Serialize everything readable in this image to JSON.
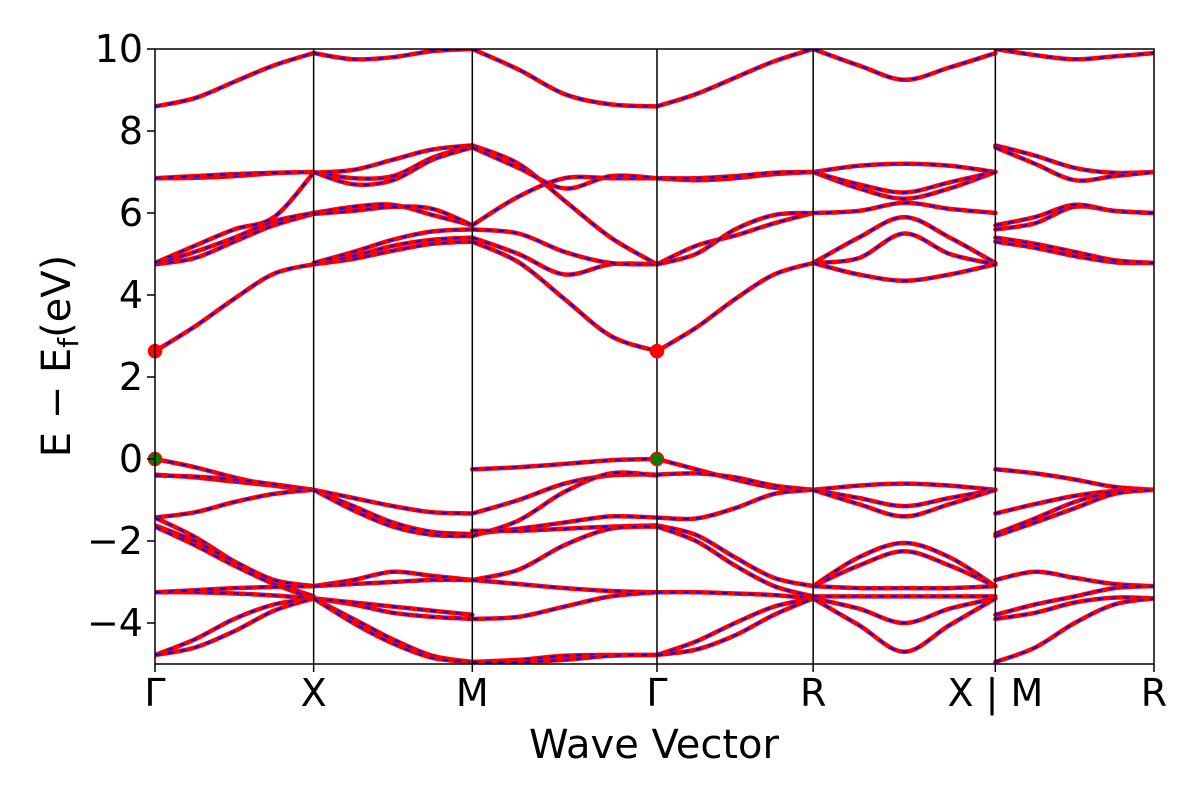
{
  "chart_data": {
    "type": "line",
    "title": "",
    "xlabel": "Wave Vector",
    "ylabel_main": "E − E",
    "ylabel_sub": "f",
    "ylabel_unit": "(eV)",
    "ylim": [
      -5,
      10
    ],
    "yticks": [
      -4,
      -2,
      0,
      2,
      4,
      6,
      8,
      10
    ],
    "ytick_labels": [
      "−4",
      "−2",
      "0",
      "2",
      "4",
      "6",
      "8",
      "10"
    ],
    "x_ticks": [
      {
        "label": "Γ",
        "x": 0
      },
      {
        "label": "X",
        "x": 1
      },
      {
        "label": "M",
        "x": 2
      },
      {
        "label": "Γ",
        "x": 3.1641
      },
      {
        "label": "R",
        "x": 4.1484
      },
      {
        "label": "X | M",
        "x": 5.2969
      },
      {
        "label": "R",
        "x": 6.2969
      }
    ],
    "xlim": [
      0,
      6.2969
    ],
    "grid": false,
    "colors": {
      "band_solid": "#ff0000",
      "band_dash": "#0000ff",
      "cbm_marker": "#ff0000",
      "vbm_marker": "#008000"
    },
    "band_extrema": [
      {
        "kind": "CBM",
        "points": [
          [
            0,
            2.63
          ],
          [
            3.1641,
            2.63
          ]
        ]
      },
      {
        "kind": "VBM",
        "points": [
          [
            0,
            0.0
          ],
          [
            3.1641,
            0.0
          ]
        ]
      }
    ],
    "segments": [
      {
        "name": "Γ-X",
        "bands": [
          [
            2.63,
            3.23,
            3.91,
            4.52,
            4.75
          ],
          [
            4.75,
            4.9,
            5.3,
            5.7,
            5.98
          ],
          [
            4.75,
            5.05,
            5.4,
            5.8,
            6.0
          ],
          [
            4.78,
            5.2,
            5.6,
            5.9,
            6.98
          ],
          [
            6.85,
            6.86,
            6.9,
            6.97,
            7.0
          ],
          [
            6.85,
            6.9,
            6.95,
            6.98,
            7.0
          ],
          [
            8.6,
            8.8,
            9.2,
            9.6,
            9.9
          ],
          [
            0.0,
            -0.2,
            -0.45,
            -0.65,
            -0.75
          ],
          [
            -0.38,
            -0.45,
            -0.55,
            -0.65,
            -0.75
          ],
          [
            -0.4,
            -0.43,
            -0.5,
            -0.62,
            -0.75
          ],
          [
            -1.43,
            -1.3,
            -1.05,
            -0.85,
            -0.75
          ],
          [
            -1.43,
            -1.9,
            -2.5,
            -3.0,
            -3.35
          ],
          [
            -1.62,
            -2.0,
            -2.5,
            -2.95,
            -3.1
          ],
          [
            -1.65,
            -2.1,
            -2.6,
            -3.05,
            -3.4
          ],
          [
            -3.25,
            -3.25,
            -3.28,
            -3.33,
            -3.4
          ],
          [
            -3.25,
            -3.2,
            -3.15,
            -3.12,
            -3.1
          ],
          [
            -4.78,
            -4.4,
            -3.9,
            -3.55,
            -3.4
          ],
          [
            -4.78,
            -4.6,
            -4.2,
            -3.7,
            -3.4
          ]
        ]
      },
      {
        "name": "X-M",
        "bands": [
          [
            4.75,
            4.88,
            5.08,
            5.25,
            5.3
          ],
          [
            4.75,
            4.95,
            5.2,
            5.35,
            5.4
          ],
          [
            4.78,
            5.05,
            5.35,
            5.55,
            5.6
          ],
          [
            6.0,
            6.15,
            6.2,
            5.95,
            5.7
          ],
          [
            5.98,
            6.05,
            6.15,
            6.1,
            5.7
          ],
          [
            7.0,
            6.85,
            6.9,
            7.35,
            7.65
          ],
          [
            6.98,
            7.05,
            7.3,
            7.55,
            7.65
          ],
          [
            7.0,
            6.7,
            6.8,
            7.3,
            7.6
          ],
          [
            9.9,
            9.75,
            9.8,
            9.95,
            10.0
          ],
          [
            -0.75,
            -0.95,
            -1.15,
            -1.3,
            -1.33
          ],
          [
            -0.75,
            -1.15,
            -1.55,
            -1.78,
            -1.83
          ],
          [
            -0.75,
            -1.25,
            -1.65,
            -1.85,
            -1.88
          ],
          [
            -3.1,
            -2.95,
            -2.75,
            -2.85,
            -2.95
          ],
          [
            -3.1,
            -3.05,
            -3.0,
            -2.95,
            -2.95
          ],
          [
            -3.4,
            -3.55,
            -3.75,
            -3.85,
            -3.9
          ],
          [
            -3.4,
            -3.5,
            -3.6,
            -3.7,
            -3.8
          ],
          [
            -3.4,
            -3.9,
            -4.4,
            -4.8,
            -4.95
          ],
          [
            -3.4,
            -4.0,
            -4.5,
            -4.85,
            -4.95
          ]
        ]
      },
      {
        "name": "M-Γ",
        "bands": [
          [
            5.3,
            4.8,
            3.9,
            3.0,
            2.63
          ],
          [
            5.4,
            5.0,
            4.5,
            4.75,
            4.75
          ],
          [
            5.6,
            5.5,
            5.05,
            4.78,
            4.75
          ],
          [
            5.7,
            6.4,
            6.85,
            6.85,
            6.85
          ],
          [
            7.65,
            7.2,
            6.3,
            5.4,
            4.75
          ],
          [
            7.6,
            7.1,
            6.6,
            6.9,
            6.85
          ],
          [
            10.0,
            9.5,
            8.9,
            8.65,
            8.6
          ],
          [
            -0.25,
            -0.2,
            -0.12,
            -0.03,
            0.0
          ],
          [
            -1.33,
            -1.0,
            -0.6,
            -0.4,
            -0.38
          ],
          [
            -1.83,
            -1.7,
            -1.55,
            -1.4,
            -1.43
          ],
          [
            -1.88,
            -1.5,
            -0.8,
            -0.35,
            -0.4
          ],
          [
            -1.75,
            -1.75,
            -1.7,
            -1.65,
            -1.62
          ],
          [
            -2.95,
            -2.7,
            -2.1,
            -1.7,
            -1.65
          ],
          [
            -2.95,
            -3.05,
            -3.15,
            -3.22,
            -3.25
          ],
          [
            -3.9,
            -3.85,
            -3.6,
            -3.35,
            -3.25
          ],
          [
            -4.95,
            -4.9,
            -4.8,
            -4.78,
            -4.78
          ],
          [
            -4.95,
            -4.95,
            -4.9,
            -4.8,
            -4.78
          ]
        ]
      },
      {
        "name": "Γ-R",
        "bands": [
          [
            2.63,
            3.2,
            3.9,
            4.5,
            4.78
          ],
          [
            4.75,
            5.2,
            5.45,
            5.75,
            6.0
          ],
          [
            4.75,
            5.0,
            5.6,
            5.95,
            6.0
          ],
          [
            6.85,
            6.8,
            6.85,
            6.95,
            7.0
          ],
          [
            6.85,
            6.85,
            6.9,
            6.98,
            7.0
          ],
          [
            8.6,
            8.9,
            9.3,
            9.7,
            10.0
          ],
          [
            0.0,
            -0.25,
            -0.5,
            -0.7,
            -0.75
          ],
          [
            -0.38,
            -0.35,
            -0.45,
            -0.65,
            -0.75
          ],
          [
            -1.43,
            -1.45,
            -1.2,
            -0.85,
            -0.75
          ],
          [
            -1.62,
            -1.85,
            -2.4,
            -2.9,
            -3.1
          ],
          [
            -1.65,
            -2.0,
            -2.6,
            -3.1,
            -3.35
          ],
          [
            -3.25,
            -3.25,
            -3.28,
            -3.32,
            -3.4
          ],
          [
            -4.78,
            -4.45,
            -4.0,
            -3.6,
            -3.4
          ],
          [
            -4.78,
            -4.65,
            -4.3,
            -3.8,
            -3.4
          ]
        ]
      },
      {
        "name": "R-X",
        "bands": [
          [
            4.78,
            5.4,
            5.9,
            5.4,
            4.78
          ],
          [
            4.78,
            4.9,
            5.5,
            5.0,
            4.75
          ],
          [
            4.78,
            4.5,
            4.35,
            4.5,
            4.75
          ],
          [
            6.0,
            6.05,
            6.25,
            6.1,
            6.0
          ],
          [
            7.0,
            6.6,
            6.35,
            6.6,
            7.0
          ],
          [
            7.0,
            7.15,
            7.2,
            7.15,
            7.0
          ],
          [
            7.0,
            6.7,
            6.5,
            6.75,
            7.0
          ],
          [
            10.0,
            9.6,
            9.25,
            9.55,
            9.9
          ],
          [
            -0.75,
            -0.65,
            -0.6,
            -0.65,
            -0.75
          ],
          [
            -0.75,
            -0.95,
            -1.15,
            -0.95,
            -0.75
          ],
          [
            -0.75,
            -1.1,
            -1.4,
            -1.1,
            -0.75
          ],
          [
            -3.1,
            -2.4,
            -2.05,
            -2.4,
            -3.1
          ],
          [
            -3.1,
            -2.6,
            -2.25,
            -2.6,
            -3.1
          ],
          [
            -3.4,
            -3.65,
            -4.0,
            -3.65,
            -3.4
          ],
          [
            -3.4,
            -4.05,
            -4.7,
            -4.05,
            -3.4
          ],
          [
            -3.1,
            -3.15,
            -3.15,
            -3.15,
            -3.1
          ],
          [
            -3.35,
            -3.35,
            -3.35,
            -3.35,
            -3.35
          ]
        ]
      },
      {
        "name": "M-R",
        "bands": [
          [
            5.3,
            5.15,
            4.95,
            4.8,
            4.78
          ],
          [
            5.4,
            5.25,
            5.05,
            4.85,
            4.78
          ],
          [
            5.6,
            5.75,
            6.15,
            6.05,
            6.0
          ],
          [
            5.7,
            5.9,
            6.2,
            6.05,
            6.0
          ],
          [
            7.65,
            7.4,
            7.1,
            6.98,
            7.0
          ],
          [
            7.6,
            7.2,
            6.8,
            6.9,
            7.0
          ],
          [
            10.0,
            9.85,
            9.75,
            9.82,
            9.9
          ],
          [
            -0.25,
            -0.35,
            -0.5,
            -0.68,
            -0.75
          ],
          [
            -1.33,
            -1.1,
            -0.9,
            -0.78,
            -0.75
          ],
          [
            -1.83,
            -1.45,
            -1.05,
            -0.8,
            -0.75
          ],
          [
            -1.88,
            -1.55,
            -1.2,
            -0.85,
            -0.75
          ],
          [
            -2.95,
            -2.75,
            -2.9,
            -3.05,
            -3.1
          ],
          [
            -3.8,
            -3.55,
            -3.35,
            -3.15,
            -3.1
          ],
          [
            -3.9,
            -3.75,
            -3.5,
            -3.38,
            -3.4
          ],
          [
            -4.95,
            -4.6,
            -4.0,
            -3.55,
            -3.4
          ]
        ]
      }
    ]
  }
}
